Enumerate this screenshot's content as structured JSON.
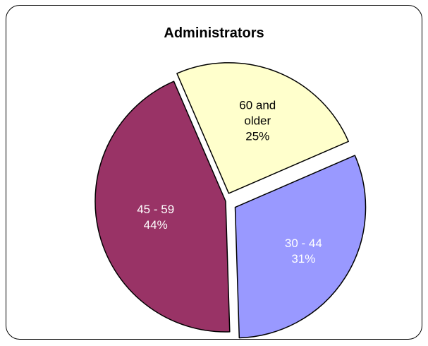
{
  "chart_data": {
    "type": "pie",
    "title": "Administrators",
    "slices": [
      {
        "label_lines": [
          "30 - 44"
        ],
        "pct_label": "31%",
        "value": 31,
        "color": "#9999FF",
        "label_color": "#ffffff"
      },
      {
        "label_lines": [
          "45 - 59"
        ],
        "pct_label": "44%",
        "value": 44,
        "color": "#993366",
        "label_color": "#ffffff"
      },
      {
        "label_lines": [
          "60 and",
          "older"
        ],
        "pct_label": "25%",
        "value": 25,
        "color": "#FFFFCC",
        "label_color": "#000000"
      }
    ]
  }
}
